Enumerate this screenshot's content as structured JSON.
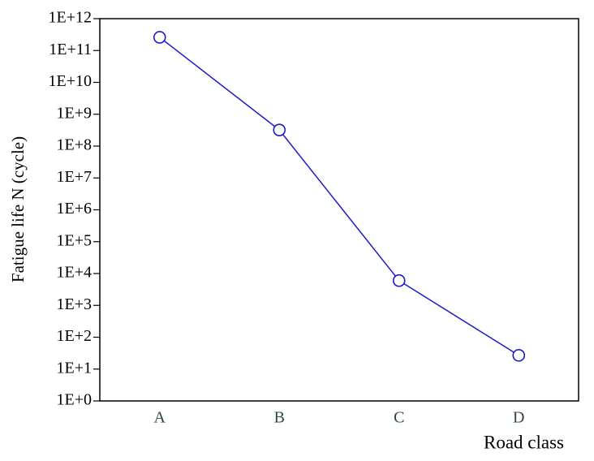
{
  "chart_data": {
    "type": "line",
    "xlabel": "Road class",
    "ylabel": "Fatigue life N (cycle)",
    "categories": [
      "A",
      "B",
      "C",
      "D"
    ],
    "series": [
      {
        "name": "Fatigue life",
        "color": "#1a1acc",
        "values": [
          260000000000,
          320000000,
          6000,
          27
        ]
      }
    ],
    "yscale": "log",
    "ylim": [
      1,
      1000000000000
    ],
    "yticks": [
      {
        "value": 1,
        "label": "1E+0"
      },
      {
        "value": 10,
        "label": "1E+1"
      },
      {
        "value": 100,
        "label": "1E+2"
      },
      {
        "value": 1000,
        "label": "1E+3"
      },
      {
        "value": 10000,
        "label": "1E+4"
      },
      {
        "value": 100000,
        "label": "1E+5"
      },
      {
        "value": 1000000,
        "label": "1E+6"
      },
      {
        "value": 10000000,
        "label": "1E+7"
      },
      {
        "value": 100000000,
        "label": "1E+8"
      },
      {
        "value": 1000000000,
        "label": "1E+9"
      },
      {
        "value": 10000000000,
        "label": "1E+10"
      },
      {
        "value": 100000000000,
        "label": "1E+11"
      },
      {
        "value": 1000000000000,
        "label": "1E+12"
      }
    ],
    "grid": false,
    "category_color": "#2f4a35"
  }
}
